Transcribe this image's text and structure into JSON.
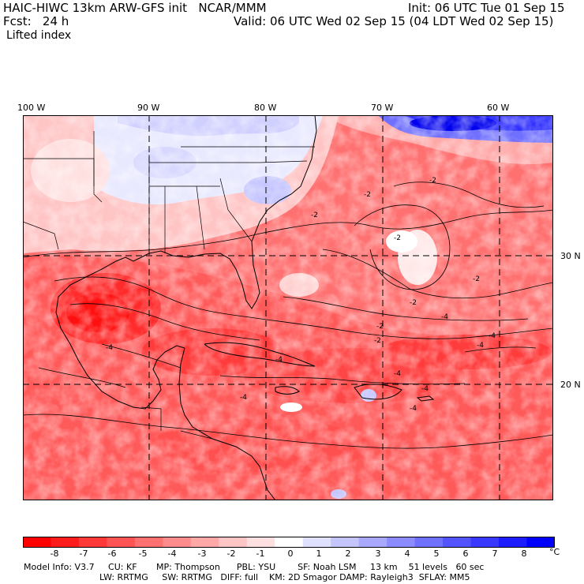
{
  "header": {
    "model_title": "HAIC-HIWC 13km ARW-GFS init   NCAR/MMM",
    "init": "Init: 06 UTC Tue 01 Sep 15",
    "fcst_label": "Fcst:   24 h",
    "valid": "Valid: 06 UTC Wed 02 Sep 15 (04 LDT Wed 02 Sep 15)",
    "field": "Lifted index"
  },
  "map": {
    "lon_labels": [
      "100 W",
      "90 W",
      "80 W",
      "70 W",
      "60 W"
    ],
    "lat_labels": [
      "30 N",
      "20 N"
    ],
    "contour_labels": [
      "-2",
      "-2",
      "-2",
      "-2",
      "-2",
      "-2",
      "-2",
      "-4",
      "-4",
      "-4",
      "-4",
      "-4",
      "-4",
      "-4",
      "-2",
      "-4",
      "-4"
    ]
  },
  "colorbar": {
    "ticks": [
      "-8",
      "-7",
      "-6",
      "-5",
      "-4",
      "-3",
      "-2",
      "-1",
      "0",
      "1",
      "2",
      "3",
      "4",
      "5",
      "6",
      "7",
      "8"
    ],
    "unit": "°C",
    "colors": [
      "#ff0000",
      "#ff1c1c",
      "#ff3838",
      "#ff5454",
      "#ff7070",
      "#ff8c8c",
      "#ffa8a8",
      "#ffc4c4",
      "#ffe0e0",
      "#ffffff",
      "#e0e0ff",
      "#c4c4ff",
      "#a8a8ff",
      "#8c8cff",
      "#7070ff",
      "#5454ff",
      "#3838ff",
      "#1c1cff",
      "#0000ff"
    ]
  },
  "model_info": {
    "line1": "Model Info: V3.7     CU: KF       MP: Thompson      PBL: YSU        SF: Noah LSM     13 km    51 levels   60 sec",
    "line2": "LW: RRTMG     SW: RRTMG   DIFF: full    KM: 2D Smagor DAMP: Rayleigh3  SFLAY: MM5"
  }
}
